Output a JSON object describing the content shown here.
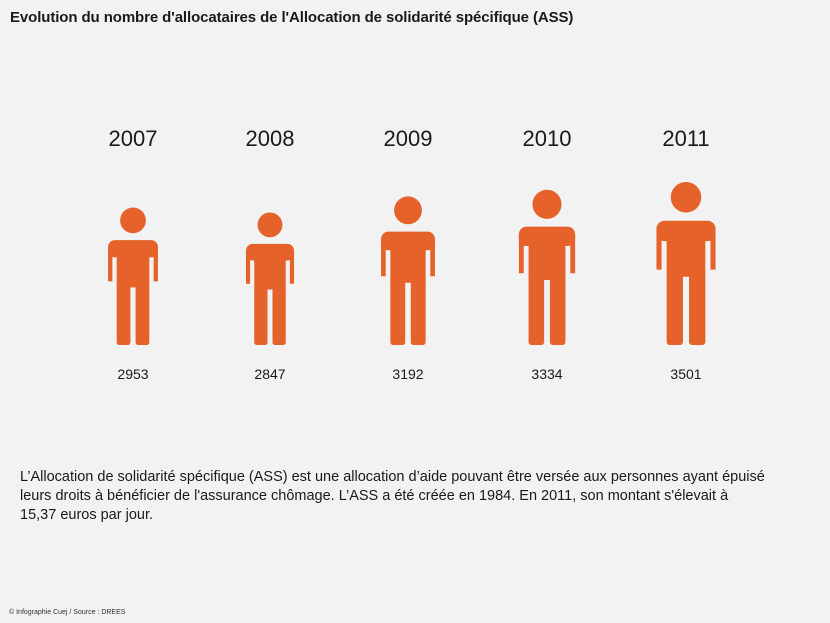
{
  "title": "Evolution du nombre d'allocataires de l'Allocation de solidarité spécifique (ASS)",
  "chart_data": {
    "type": "pictograph",
    "categories": [
      "2007",
      "2008",
      "2009",
      "2010",
      "2011"
    ],
    "values": [
      2953,
      2847,
      3192,
      3334,
      3501
    ],
    "value_labels": [
      "2953",
      "2847",
      "3192",
      "3334",
      "3501"
    ],
    "color": "#e5622a"
  },
  "description": "L’Allocation de solidarité spécifique (ASS) est une allocation d’aide pouvant être versée aux personnes ayant épuisé leurs droits à bénéficier de l'assurance chômage. L’ASS a été créée en 1984. En 2011, son montant s'élevait à 15,37 euros par jour.",
  "credit": "© Infographie Cuej / Source : DREES"
}
